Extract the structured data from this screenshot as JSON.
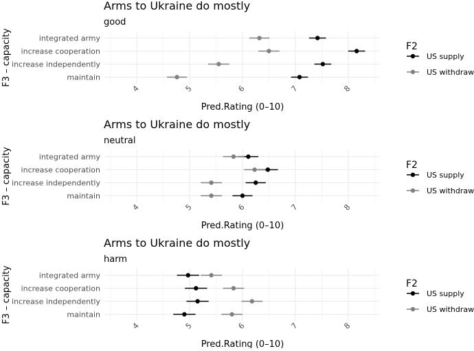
{
  "colors": {
    "us_supply": "#000000",
    "us_withdraw": "#808080",
    "grid": "#ebebeb",
    "text": "#1a1a1a",
    "tick": "#4d4d4d"
  },
  "chart_data": [
    {
      "type": "dot-errorbar",
      "title": "Arms to Ukraine do mostly",
      "subtitle": "good",
      "xlabel": "Pred.Rating (0–10)",
      "ylabel": "F3 – capacity",
      "xlim": [
        3.4,
        8.6
      ],
      "xticks": [
        "4",
        "5",
        "6",
        "7",
        "8"
      ],
      "categories": [
        "integrated army",
        "increase cooperation",
        "increase independently",
        "maintain"
      ],
      "legend": {
        "title": "F2",
        "entries": [
          "US supply",
          "US withdraw"
        ],
        "position": "right"
      },
      "series": [
        {
          "name": "US supply",
          "values": [
            7.42,
            8.16,
            7.52,
            7.08
          ],
          "lower": [
            7.26,
            8.0,
            7.36,
            6.92
          ],
          "upper": [
            7.58,
            8.32,
            7.68,
            7.24
          ]
        },
        {
          "name": "US withdraw",
          "values": [
            6.32,
            6.5,
            5.55,
            4.76
          ],
          "lower": [
            6.13,
            6.3,
            5.35,
            4.57
          ],
          "upper": [
            6.51,
            6.7,
            5.75,
            4.95
          ]
        }
      ]
    },
    {
      "type": "dot-errorbar",
      "title": "Arms to Ukraine do mostly",
      "subtitle": "neutral",
      "xlabel": "Pred.Rating (0–10)",
      "ylabel": "F3 – capacity",
      "xlim": [
        3.4,
        8.6
      ],
      "xticks": [
        "4",
        "5",
        "6",
        "7",
        "8"
      ],
      "categories": [
        "integrated army",
        "increase cooperation",
        "increase independently",
        "maintain"
      ],
      "legend": {
        "title": "F2",
        "entries": [
          "US supply",
          "US withdraw"
        ],
        "position": "right"
      },
      "series": [
        {
          "name": "US supply",
          "values": [
            6.11,
            6.48,
            6.25,
            6.0
          ],
          "lower": [
            5.92,
            6.29,
            6.06,
            5.81
          ],
          "upper": [
            6.3,
            6.67,
            6.44,
            6.19
          ]
        },
        {
          "name": "US withdraw",
          "values": [
            5.83,
            6.23,
            5.41,
            5.41
          ],
          "lower": [
            5.63,
            6.03,
            5.21,
            5.21
          ],
          "upper": [
            6.03,
            6.43,
            5.61,
            5.61
          ]
        }
      ]
    },
    {
      "type": "dot-errorbar",
      "title": "Arms to Ukraine do mostly",
      "subtitle": "harm",
      "xlabel": "Pred.Rating (0–10)",
      "ylabel": "F3 – capacity",
      "xlim": [
        3.4,
        8.6
      ],
      "xticks": [
        "4",
        "5",
        "6",
        "7",
        "8"
      ],
      "categories": [
        "integrated army",
        "increase cooperation",
        "increase independently",
        "maintain"
      ],
      "legend": {
        "title": "F2",
        "entries": [
          "US supply",
          "US withdraw"
        ],
        "position": "right"
      },
      "series": [
        {
          "name": "US supply",
          "values": [
            4.97,
            5.12,
            5.15,
            4.9
          ],
          "lower": [
            4.76,
            4.91,
            4.94,
            4.69
          ],
          "upper": [
            5.18,
            5.33,
            5.36,
            5.11
          ]
        },
        {
          "name": "US withdraw",
          "values": [
            5.41,
            5.83,
            6.18,
            5.8
          ],
          "lower": [
            5.21,
            5.63,
            5.98,
            5.6
          ],
          "upper": [
            5.61,
            6.03,
            6.38,
            6.0
          ]
        }
      ]
    }
  ]
}
